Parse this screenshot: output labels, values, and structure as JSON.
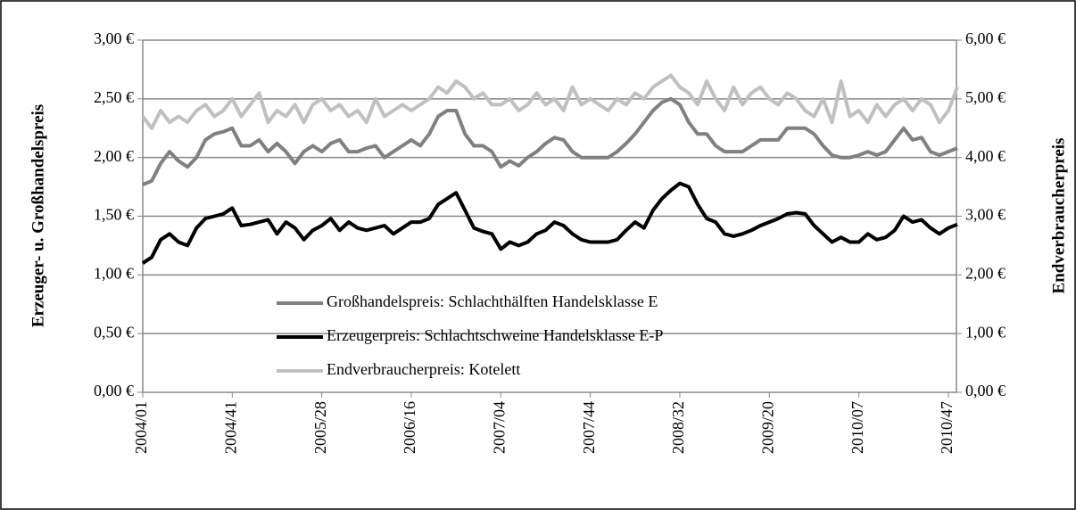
{
  "chart_data": {
    "type": "line",
    "categories": [
      "2004/01",
      null,
      null,
      null,
      null,
      null,
      null,
      null,
      null,
      null,
      "2004/41",
      null,
      null,
      null,
      null,
      null,
      null,
      null,
      null,
      null,
      "2005/28",
      null,
      null,
      null,
      null,
      null,
      null,
      null,
      null,
      null,
      "2006/16",
      null,
      null,
      null,
      null,
      null,
      null,
      null,
      null,
      null,
      "2007/04",
      null,
      null,
      null,
      null,
      null,
      null,
      null,
      null,
      null,
      "2007/44",
      null,
      null,
      null,
      null,
      null,
      null,
      null,
      null,
      null,
      "2008/32",
      null,
      null,
      null,
      null,
      null,
      null,
      null,
      null,
      null,
      "2009/20",
      null,
      null,
      null,
      null,
      null,
      null,
      null,
      null,
      null,
      "2010/07",
      null,
      null,
      null,
      null,
      null,
      null,
      null,
      null,
      null,
      "2010/47",
      null
    ],
    "y_label": "Erzeuger- u. Großhandelspreis",
    "y2_label": "Endverbraucherpreis",
    "ylim": [
      0,
      3
    ],
    "yticks": [
      {
        "value": 0,
        "label": "0,00 €"
      },
      {
        "value": 0.5,
        "label": "0,50 €"
      },
      {
        "value": 1,
        "label": "1,00 €"
      },
      {
        "value": 1.5,
        "label": "1,50 €"
      },
      {
        "value": 2,
        "label": "2,00 €"
      },
      {
        "value": 2.5,
        "label": "2,50 €"
      },
      {
        "value": 3,
        "label": "3,00 €"
      }
    ],
    "y2lim": [
      0,
      6
    ],
    "y2ticks": [
      {
        "value": 0,
        "label": "0,00 €"
      },
      {
        "value": 1,
        "label": "1,00 €"
      },
      {
        "value": 2,
        "label": "2,00 €"
      },
      {
        "value": 3,
        "label": "3,00 €"
      },
      {
        "value": 4,
        "label": "4,00 €"
      },
      {
        "value": 5,
        "label": "5,00 €"
      },
      {
        "value": 6,
        "label": "6,00 €"
      }
    ],
    "grid": true,
    "series": [
      {
        "name": "Großhandelspreis: Schlachthälften Handelsklasse E",
        "color": "#808080",
        "values": [
          1.77,
          1.8,
          1.95,
          2.05,
          1.97,
          1.92,
          2.0,
          2.15,
          2.2,
          2.22,
          2.25,
          2.1,
          2.1,
          2.15,
          2.05,
          2.12,
          2.05,
          1.95,
          2.05,
          2.1,
          2.05,
          2.12,
          2.15,
          2.05,
          2.05,
          2.08,
          2.1,
          2.0,
          2.05,
          2.1,
          2.15,
          2.1,
          2.2,
          2.35,
          2.4,
          2.4,
          2.2,
          2.1,
          2.1,
          2.05,
          1.92,
          1.97,
          1.93,
          2.0,
          2.05,
          2.12,
          2.17,
          2.15,
          2.05,
          2.0,
          2.0,
          2.0,
          2.0,
          2.05,
          2.12,
          2.2,
          2.3,
          2.4,
          2.47,
          2.5,
          2.45,
          2.3,
          2.2,
          2.2,
          2.1,
          2.05,
          2.05,
          2.05,
          2.1,
          2.15,
          2.15,
          2.15,
          2.25,
          2.25,
          2.25,
          2.2,
          2.1,
          2.02,
          2.0,
          2.0,
          2.02,
          2.05,
          2.02,
          2.05,
          2.15,
          2.25,
          2.15,
          2.17,
          2.05,
          2.02,
          2.05,
          2.08
        ]
      },
      {
        "name": "Erzeugerpreis: Schlachtschweine Handelsklasse E-P",
        "color": "#000000",
        "values": [
          1.1,
          1.15,
          1.3,
          1.35,
          1.28,
          1.25,
          1.4,
          1.48,
          1.5,
          1.52,
          1.57,
          1.42,
          1.43,
          1.45,
          1.47,
          1.35,
          1.45,
          1.4,
          1.3,
          1.38,
          1.42,
          1.48,
          1.38,
          1.45,
          1.4,
          1.38,
          1.4,
          1.42,
          1.35,
          1.4,
          1.45,
          1.45,
          1.48,
          1.6,
          1.65,
          1.7,
          1.55,
          1.4,
          1.37,
          1.35,
          1.22,
          1.28,
          1.25,
          1.28,
          1.35,
          1.38,
          1.45,
          1.42,
          1.35,
          1.3,
          1.28,
          1.28,
          1.28,
          1.3,
          1.38,
          1.45,
          1.4,
          1.55,
          1.65,
          1.72,
          1.78,
          1.75,
          1.6,
          1.48,
          1.45,
          1.35,
          1.33,
          1.35,
          1.38,
          1.42,
          1.45,
          1.48,
          1.52,
          1.53,
          1.52,
          1.42,
          1.35,
          1.28,
          1.32,
          1.28,
          1.28,
          1.35,
          1.3,
          1.32,
          1.38,
          1.5,
          1.45,
          1.47,
          1.4,
          1.35,
          1.4,
          1.43
        ]
      },
      {
        "name": "Endverbraucherpreis: Kotelett",
        "color": "#c0c0c0",
        "axis": "y2",
        "values": [
          4.7,
          4.5,
          4.8,
          4.6,
          4.7,
          4.6,
          4.8,
          4.9,
          4.7,
          4.8,
          5.0,
          4.7,
          4.9,
          5.1,
          4.6,
          4.8,
          4.7,
          4.9,
          4.6,
          4.9,
          5.0,
          4.8,
          4.9,
          4.7,
          4.8,
          4.6,
          5.0,
          4.7,
          4.8,
          4.9,
          4.8,
          4.9,
          5.0,
          5.2,
          5.1,
          5.3,
          5.2,
          5.0,
          5.1,
          4.9,
          4.9,
          5.0,
          4.8,
          4.9,
          5.1,
          4.9,
          5.0,
          4.8,
          5.2,
          4.9,
          5.0,
          4.9,
          4.8,
          5.0,
          4.9,
          5.1,
          5.0,
          5.2,
          5.3,
          5.4,
          5.2,
          5.1,
          4.9,
          5.3,
          5.0,
          4.8,
          5.2,
          4.9,
          5.1,
          5.2,
          5.0,
          4.9,
          5.1,
          5.0,
          4.8,
          4.7,
          5.0,
          4.6,
          5.3,
          4.7,
          4.8,
          4.6,
          4.9,
          4.7,
          4.9,
          5.0,
          4.8,
          5.0,
          4.9,
          4.6,
          4.8,
          5.2
        ]
      }
    ]
  }
}
